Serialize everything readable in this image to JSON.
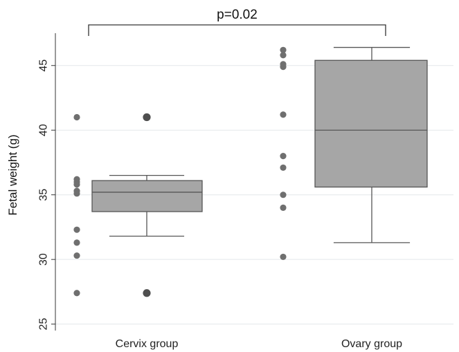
{
  "chart_data": {
    "type": "box",
    "title": "",
    "xlabel": "",
    "ylabel": "Fetal weight (g)",
    "ylim": [
      24.5,
      47.5
    ],
    "yticks": [
      25,
      30,
      35,
      40,
      45
    ],
    "grid": true,
    "colors": {
      "box": "#a6a6a6",
      "point": "#6f6f6f",
      "outlier": "#4f4f4f",
      "line": "#555555",
      "grid": "#e3e7ea"
    },
    "categories": [
      "Cervix group",
      "Ovary group"
    ],
    "boxes": [
      {
        "name": "Cervix group",
        "whisker_low": 31.8,
        "q1": 33.7,
        "median": 35.2,
        "q3": 36.1,
        "whisker_high": 36.5,
        "outliers": [
          41,
          27.4
        ]
      },
      {
        "name": "Ovary group",
        "whisker_low": 31.3,
        "q1": 35.6,
        "median": 40.0,
        "q3": 45.4,
        "whisker_high": 46.4,
        "outliers": []
      }
    ],
    "points": [
      {
        "group": "Cervix group",
        "values": [
          41.0,
          36.2,
          36.0,
          35.8,
          35.3,
          35.1,
          32.3,
          31.3,
          30.3,
          27.4
        ]
      },
      {
        "group": "Ovary group",
        "values": [
          46.2,
          45.8,
          45.1,
          44.9,
          41.2,
          38.0,
          37.1,
          35.0,
          34.0,
          30.2
        ]
      }
    ],
    "annotation": {
      "text": "p=0.02",
      "between": [
        "Cervix group",
        "Ovary group"
      ]
    }
  }
}
